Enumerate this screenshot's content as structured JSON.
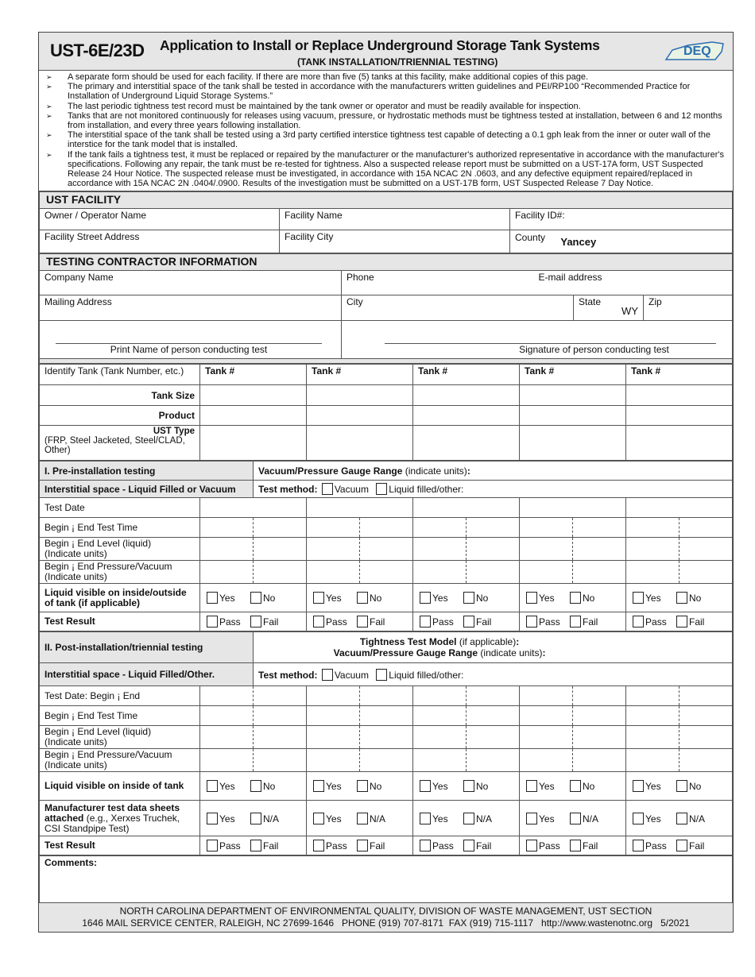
{
  "header": {
    "code": "UST-6E/23D",
    "title": "Application to Install or Replace Underground Storage Tank Systems",
    "subtitle": "(TANK INSTALLATION/TRIENNIAL TESTING)",
    "logo_text": "DEQ",
    "accent": "#2b6cb0",
    "logo_green": "#4a9a3a"
  },
  "instructions": [
    "A separate form should be used for each facility. If there are more than five (5) tanks at this facility, make additional copies of this page.",
    "The primary and interstitial space of the tank shall be tested in accordance with the manufacturers written guidelines and PEI/RP100 “Recommended Practice for Installation of Underground Liquid Storage Systems.”",
    "The last periodic tightness test record must be maintained by the tank owner or operator and must be readily available for inspection.",
    "Tanks that are not monitored continuously for releases using vacuum, pressure, or hydrostatic methods must be tightness tested at installation, between 6 and 12 months from installation, and every three years following installation.",
    "The interstitial space of the tank shall be tested using a 3rd party certified interstice tightness test capable of detecting a 0.1 gph leak from the inner or outer wall of the interstice for the tank model that is installed.",
    "If the tank fails a tightness test, it must be replaced or repaired by the manufacturer or the manufacturer's authorized representative in accordance with the manufacturer's specifications. Following any repair, the tank must be re-tested for tightness. Also a suspected release report must be submitted on a UST-17A form, UST Suspected Release 24 Hour Notice. The suspected release must be investigated, in accordance with 15A NCAC 2N .0603, and any defective equipment repaired/replaced in accordance with 15A NCAC 2N .0404/.0900. Results of the investigation must be submitted on a UST-17B form, UST Suspected Release 7 Day Notice."
  ],
  "facility": {
    "heading": "UST FACILITY",
    "owner_label": "Owner / Operator Name",
    "name_label": "Facility Name",
    "id_label": "Facility ID#:",
    "street_label": "Facility Street Address",
    "city_label": "Facility City",
    "county_label": "County",
    "county_value": "Yancey"
  },
  "contractor": {
    "heading": "TESTING CONTRACTOR INFORMATION",
    "company_label": "Company Name",
    "phone_label": "Phone",
    "email_label": "E-mail address",
    "mailing_label": "Mailing Address",
    "city_label": "City",
    "state_label": "State",
    "state_value": "WY",
    "zip_label": "Zip",
    "print_name_label": "Print Name of person conducting test",
    "signature_label": "Signature of person conducting test"
  },
  "tanks": {
    "identify_label": "Identify Tank (Tank Number, etc.)",
    "tank_header": "Tank #",
    "size_label": "Tank Size",
    "product_label": "Product",
    "type_label": "UST Type",
    "type_note": "(FRP, Steel Jacketed, Steel/CLAD, Other)"
  },
  "pre": {
    "heading": "I. Pre-installation testing",
    "gauge": "Vacuum/Pressure Gauge Range",
    "gauge_note": "(indicate units)",
    "interstitial": "Interstitial space - Liquid Filled or Vacuum",
    "method_label": "Test method:",
    "method_vacuum": "Vacuum",
    "method_liquid": "Liquid filled/other:",
    "rows": [
      {
        "label": "Test Date",
        "kind": "full"
      },
      {
        "label": "Begin ¡ End Test Time",
        "kind": "split"
      },
      {
        "label": "Begin ¡ End Level (liquid)\n(Indicate units)",
        "kind": "split"
      },
      {
        "label": "Begin ¡ End Pressure/Vacuum\n(Indicate units)",
        "kind": "split"
      },
      {
        "label": "Liquid visible on inside/outside of tank (if applicable)",
        "kind": "opts",
        "bold": true,
        "opts": [
          "Yes",
          "No"
        ]
      },
      {
        "label": "Test Result",
        "kind": "opts",
        "bold": true,
        "opts": [
          "Pass",
          "Fail"
        ]
      }
    ]
  },
  "post": {
    "heading": "II. Post-installation/triennial testing",
    "model": "Tightness Test Model",
    "model_note": "(if applicable)",
    "gauge": "Vacuum/Pressure Gauge Range",
    "gauge_note": "(indicate units)",
    "interstitial": "Interstitial space - Liquid Filled/Other.",
    "method_label": "Test method:",
    "method_vacuum": "Vacuum",
    "method_liquid": "Liquid filled/other:",
    "rows": [
      {
        "label": "Test Date: Begin ¡ End",
        "kind": "split"
      },
      {
        "label": "Begin ¡ End Test Time",
        "kind": "split"
      },
      {
        "label": "Begin ¡ End Level (liquid)\n(Indicate units)",
        "kind": "split"
      },
      {
        "label": "Begin ¡ End Pressure/Vacuum\n(Indicate units)",
        "kind": "split"
      },
      {
        "label": "Liquid visible on inside of tank",
        "kind": "opts",
        "bold": true,
        "opts": [
          "Yes",
          "No"
        ]
      },
      {
        "label": "Manufacturer test data sheets attached",
        "note": " (e.g., Xerxes Truchek, CSI Standpipe Test)",
        "kind": "opts",
        "bold": true,
        "opts": [
          "Yes",
          "N/A"
        ]
      },
      {
        "label": "Test Result",
        "kind": "opts",
        "bold": true,
        "opts": [
          "Pass",
          "Fail"
        ]
      }
    ]
  },
  "comments_label": "Comments:",
  "footer": {
    "line1": "NORTH CAROLINA DEPARTMENT OF ENVIRONMENTAL QUALITY, DIVISION OF WASTE MANAGEMENT, UST SECTION",
    "line2": "1646 MAIL SERVICE CENTER, RALEIGH, NC 27699-1646   PHONE (919) 707-8171  FAX (919) 715-1117   http://www.wastenotnc.org   5/2021"
  }
}
